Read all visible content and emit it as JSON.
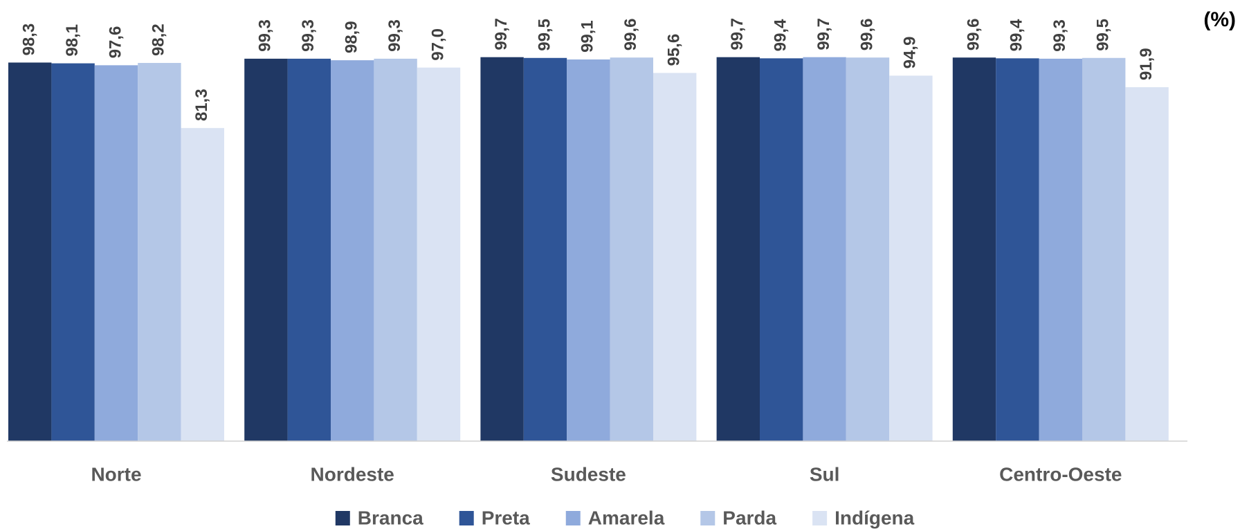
{
  "chart_data": {
    "type": "bar",
    "y_label": "(%)",
    "categories": [
      "Norte",
      "Nordeste",
      "Sudeste",
      "Sul",
      "Centro-Oeste"
    ],
    "ylim": [
      0,
      100
    ],
    "legend": "bottom",
    "series": [
      {
        "name": "Branca",
        "color": "#203864",
        "values": [
          98.3,
          99.3,
          99.7,
          99.7,
          99.6
        ],
        "value_labels": [
          "98,3",
          "99,3",
          "99,7",
          "99,7",
          "99,6"
        ]
      },
      {
        "name": "Preta",
        "color": "#2f5597",
        "values": [
          98.1,
          99.3,
          99.5,
          99.4,
          99.4
        ],
        "value_labels": [
          "98,1",
          "99,3",
          "99,5",
          "99,4",
          "99,4"
        ]
      },
      {
        "name": "Amarela",
        "color": "#8faadc",
        "values": [
          97.6,
          98.9,
          99.1,
          99.7,
          99.3
        ],
        "value_labels": [
          "97,6",
          "98,9",
          "99,1",
          "99,7",
          "99,3"
        ]
      },
      {
        "name": "Parda",
        "color": "#b4c7e7",
        "values": [
          98.2,
          99.3,
          99.6,
          99.6,
          99.5
        ],
        "value_labels": [
          "98,2",
          "99,3",
          "99,6",
          "99,6",
          "99,5"
        ]
      },
      {
        "name": "Indígena",
        "color": "#dae3f3",
        "values": [
          81.3,
          97.0,
          95.6,
          94.9,
          91.9
        ],
        "value_labels": [
          "81,3",
          "97,0",
          "95,6",
          "94,9",
          "91,9"
        ]
      }
    ]
  }
}
